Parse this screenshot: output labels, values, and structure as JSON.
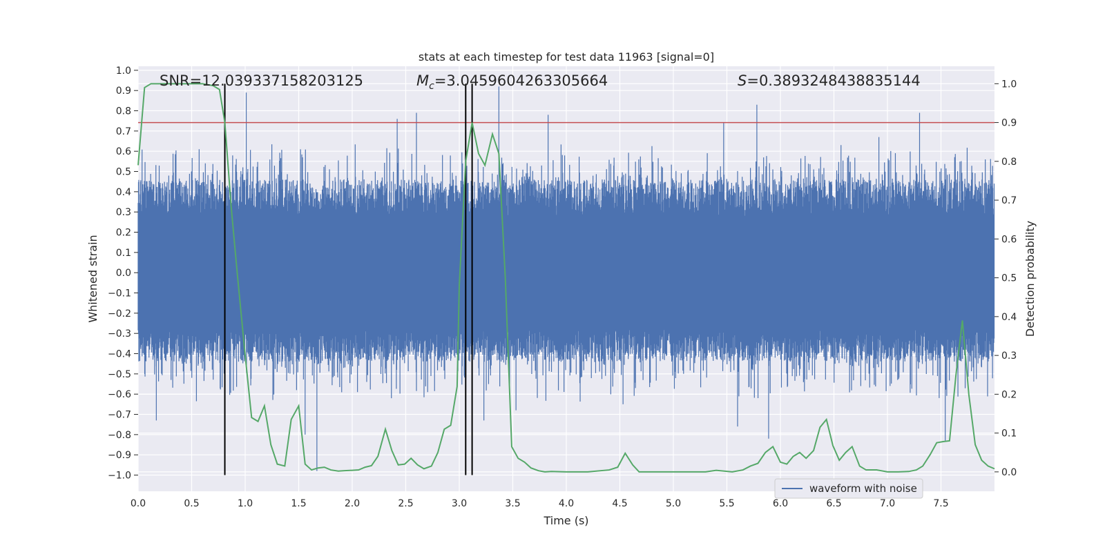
{
  "chart_data": {
    "type": "line",
    "title": "stats at each timestep for test data 11963 [signal=0]",
    "xlabel": "Time (s)",
    "ylabel_left": "Whitened strain",
    "ylabel_right": "Detection probability",
    "xlim": [
      0,
      8
    ],
    "ylim_left": [
      -1.08,
      1.02
    ],
    "ylim_right": [
      -0.05,
      1.045
    ],
    "xticks": [
      "0.0",
      "0.5",
      "1.0",
      "1.5",
      "2.0",
      "2.5",
      "3.0",
      "3.5",
      "4.0",
      "4.5",
      "5.0",
      "5.5",
      "6.0",
      "6.5",
      "7.0",
      "7.5"
    ],
    "yticks_left": [
      "1.0",
      "0.9",
      "0.8",
      "0.7",
      "0.6",
      "0.5",
      "0.4",
      "0.3",
      "0.2",
      "0.1",
      "0.0",
      "−0.1",
      "−0.2",
      "−0.3",
      "−0.4",
      "−0.5",
      "−0.6",
      "−0.7",
      "−0.8",
      "−0.9",
      "−1.0"
    ],
    "yticks_right": [
      "1.0",
      "0.9",
      "0.8",
      "0.7",
      "0.6",
      "0.5",
      "0.4",
      "0.3",
      "0.2",
      "0.1",
      "0.0"
    ],
    "annotations": {
      "snr": "SNR=12.039337158203125",
      "mc_symbol": "M",
      "mc_sub": "c",
      "mc_value": "=3.0459604263305664",
      "s_symbol": "S",
      "s_value": "=0.3893248438835144"
    },
    "legend": {
      "entries": [
        "waveform with noise"
      ],
      "location": "lower-right"
    },
    "threshold_line": {
      "value": 0.9,
      "axis": "right",
      "color": "#c44e52"
    },
    "vertical_lines": [
      0.81,
      3.06,
      3.12
    ],
    "waveform": {
      "name": "waveform with noise",
      "color": "#4c72b0",
      "spikes": [
        [
          0.57,
          0.61
        ],
        [
          0.81,
          0.73
        ],
        [
          1.01,
          0.89
        ],
        [
          1.67,
          -0.98
        ],
        [
          1.56,
          -0.8
        ],
        [
          0.17,
          -0.73
        ],
        [
          2.42,
          0.76
        ],
        [
          2.6,
          0.79
        ],
        [
          3.37,
          0.92
        ],
        [
          3.23,
          -0.73
        ],
        [
          3.53,
          -0.68
        ],
        [
          3.83,
          0.78
        ],
        [
          5.78,
          0.83
        ],
        [
          5.89,
          -0.82
        ],
        [
          7.3,
          0.79
        ],
        [
          7.54,
          -0.83
        ],
        [
          6.92,
          0.67
        ],
        [
          4.53,
          -0.65
        ],
        [
          5.6,
          -0.76
        ],
        [
          5.47,
          0.74
        ]
      ]
    },
    "detection_probability": {
      "color": "#55a868",
      "x": [
        0.0,
        0.06,
        0.12,
        0.2,
        0.3,
        0.4,
        0.5,
        0.6,
        0.7,
        0.76,
        0.81,
        0.87,
        0.93,
        1.0,
        1.06,
        1.12,
        1.18,
        1.24,
        1.3,
        1.37,
        1.43,
        1.5,
        1.56,
        1.62,
        1.68,
        1.74,
        1.8,
        1.87,
        1.93,
        2.0,
        2.06,
        2.12,
        2.18,
        2.24,
        2.31,
        2.37,
        2.43,
        2.49,
        2.55,
        2.61,
        2.67,
        2.74,
        2.8,
        2.86,
        2.92,
        2.98,
        3.0,
        3.06,
        3.12,
        3.18,
        3.24,
        3.31,
        3.37,
        3.43,
        3.49,
        3.55,
        3.61,
        3.67,
        3.74,
        3.8,
        3.86,
        4.0,
        4.2,
        4.4,
        4.48,
        4.55,
        4.62,
        4.68,
        4.8,
        5.0,
        5.2,
        5.3,
        5.4,
        5.55,
        5.65,
        5.72,
        5.79,
        5.86,
        5.93,
        6.0,
        6.06,
        6.12,
        6.18,
        6.24,
        6.31,
        6.37,
        6.43,
        6.49,
        6.55,
        6.61,
        6.67,
        6.74,
        6.8,
        6.9,
        7.0,
        7.1,
        7.2,
        7.27,
        7.33,
        7.4,
        7.46,
        7.52,
        7.58,
        7.64,
        7.7,
        7.76,
        7.82,
        7.88,
        7.94,
        8.0
      ],
      "y": [
        0.79,
        0.99,
        1.0,
        1.0,
        1.0,
        1.0,
        1.0,
        1.0,
        0.995,
        0.985,
        0.9,
        0.68,
        0.5,
        0.3,
        0.14,
        0.13,
        0.17,
        0.07,
        0.02,
        0.015,
        0.135,
        0.17,
        0.02,
        0.005,
        0.01,
        0.012,
        0.005,
        0.002,
        0.003,
        0.004,
        0.005,
        0.012,
        0.016,
        0.04,
        0.11,
        0.055,
        0.018,
        0.02,
        0.035,
        0.018,
        0.008,
        0.015,
        0.05,
        0.11,
        0.12,
        0.22,
        0.48,
        0.8,
        0.9,
        0.82,
        0.79,
        0.87,
        0.82,
        0.5,
        0.065,
        0.035,
        0.025,
        0.01,
        0.003,
        0.0,
        0.001,
        0.0,
        0.0,
        0.005,
        0.012,
        0.048,
        0.018,
        0.0,
        0.0,
        0.0,
        0.0,
        0.0,
        0.004,
        0.0,
        0.005,
        0.015,
        0.022,
        0.05,
        0.065,
        0.025,
        0.02,
        0.04,
        0.05,
        0.035,
        0.055,
        0.115,
        0.135,
        0.068,
        0.03,
        0.05,
        0.065,
        0.015,
        0.005,
        0.005,
        0.0,
        0.0,
        0.001,
        0.005,
        0.015,
        0.045,
        0.075,
        0.078,
        0.08,
        0.25,
        0.39,
        0.2,
        0.07,
        0.03,
        0.015,
        0.008
      ]
    }
  }
}
